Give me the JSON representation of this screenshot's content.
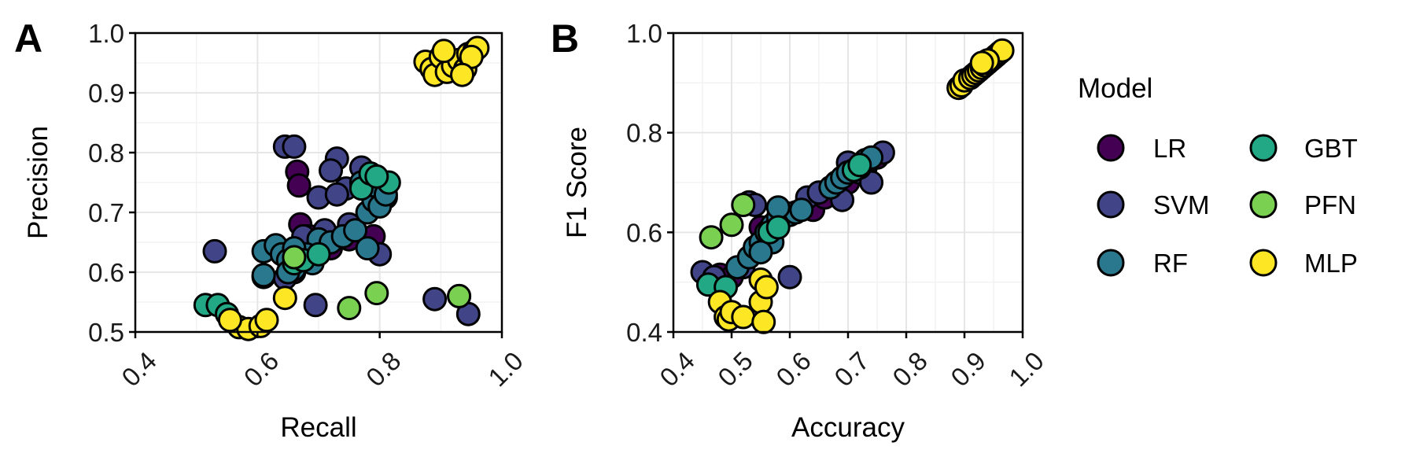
{
  "figure": {
    "panels": [
      "A",
      "B"
    ]
  },
  "legend": {
    "title": "Model",
    "items": [
      {
        "label": "LR",
        "color": "#440154"
      },
      {
        "label": "SVM",
        "color": "#414487"
      },
      {
        "label": "RF",
        "color": "#2A788E"
      },
      {
        "label": "GBT",
        "color": "#22A884"
      },
      {
        "label": "PFN",
        "color": "#7AD151"
      },
      {
        "label": "MLP",
        "color": "#FDE725"
      }
    ]
  },
  "chart_data": [
    {
      "panel": "A",
      "type": "scatter",
      "xlabel": "Recall",
      "ylabel": "Precision",
      "xlim": [
        0.4,
        1.0
      ],
      "ylim": [
        0.5,
        1.0
      ],
      "xticks": [
        "0.4",
        "0.6",
        "0.8",
        "1.0"
      ],
      "yticks": [
        "0.5",
        "0.6",
        "0.7",
        "0.8",
        "0.9",
        "1.0"
      ],
      "grid": true,
      "series": [
        {
          "name": "LR",
          "color": "#440154",
          "points": [
            [
              0.665,
              0.768
            ],
            [
              0.668,
              0.745
            ],
            [
              0.67,
              0.68
            ],
            [
              0.685,
              0.66
            ],
            [
              0.75,
              0.655
            ],
            [
              0.79,
              0.66
            ],
            [
              0.7,
              0.655
            ],
            [
              0.72,
              0.64
            ],
            [
              0.61,
              0.592
            ],
            [
              0.66,
              0.6
            ],
            [
              0.8,
              0.73
            ]
          ]
        },
        {
          "name": "SVM",
          "color": "#414487",
          "points": [
            [
              0.645,
              0.81
            ],
            [
              0.66,
              0.81
            ],
            [
              0.73,
              0.79
            ],
            [
              0.72,
              0.77
            ],
            [
              0.77,
              0.775
            ],
            [
              0.745,
              0.74
            ],
            [
              0.7,
              0.725
            ],
            [
              0.73,
              0.73
            ],
            [
              0.78,
              0.74
            ],
            [
              0.81,
              0.725
            ],
            [
              0.8,
              0.63
            ],
            [
              0.75,
              0.68
            ],
            [
              0.675,
              0.66
            ],
            [
              0.71,
              0.67
            ],
            [
              0.695,
              0.545
            ],
            [
              0.53,
              0.635
            ],
            [
              0.645,
              0.59
            ],
            [
              0.93,
              0.56
            ],
            [
              0.89,
              0.555
            ],
            [
              0.945,
              0.53
            ]
          ]
        },
        {
          "name": "RF",
          "color": "#2A788E",
          "points": [
            [
              0.61,
              0.635
            ],
            [
              0.63,
              0.645
            ],
            [
              0.64,
              0.63
            ],
            [
              0.65,
              0.62
            ],
            [
              0.66,
              0.605
            ],
            [
              0.67,
              0.62
            ],
            [
              0.69,
              0.615
            ],
            [
              0.7,
              0.655
            ],
            [
              0.72,
              0.65
            ],
            [
              0.74,
              0.66
            ],
            [
              0.76,
              0.67
            ],
            [
              0.78,
              0.7
            ],
            [
              0.79,
              0.72
            ],
            [
              0.8,
              0.71
            ],
            [
              0.77,
              0.75
            ],
            [
              0.79,
              0.745
            ],
            [
              0.81,
              0.73
            ],
            [
              0.78,
              0.64
            ],
            [
              0.65,
              0.6
            ],
            [
              0.61,
              0.595
            ],
            [
              0.68,
              0.63
            ],
            [
              0.66,
              0.64
            ]
          ]
        },
        {
          "name": "GBT",
          "color": "#22A884",
          "points": [
            [
              0.515,
              0.545
            ],
            [
              0.535,
              0.545
            ],
            [
              0.55,
              0.53
            ],
            [
              0.66,
              0.615
            ],
            [
              0.675,
              0.62
            ],
            [
              0.7,
              0.63
            ],
            [
              0.77,
              0.74
            ],
            [
              0.785,
              0.765
            ],
            [
              0.815,
              0.75
            ],
            [
              0.795,
              0.76
            ]
          ]
        },
        {
          "name": "PFN",
          "color": "#7AD151",
          "points": [
            [
              0.75,
              0.54
            ],
            [
              0.795,
              0.565
            ],
            [
              0.93,
              0.56
            ],
            [
              0.66,
              0.625
            ]
          ]
        },
        {
          "name": "MLP",
          "color": "#FDE725",
          "points": [
            [
              0.57,
              0.508
            ],
            [
              0.585,
              0.505
            ],
            [
              0.605,
              0.51
            ],
            [
              0.615,
              0.52
            ],
            [
              0.645,
              0.557
            ],
            [
              0.555,
              0.52
            ],
            [
              0.875,
              0.952
            ],
            [
              0.885,
              0.94
            ],
            [
              0.89,
              0.93
            ],
            [
              0.9,
              0.96
            ],
            [
              0.91,
              0.935
            ],
            [
              0.92,
              0.945
            ],
            [
              0.93,
              0.955
            ],
            [
              0.94,
              0.94
            ],
            [
              0.945,
              0.965
            ],
            [
              0.955,
              0.97
            ],
            [
              0.96,
              0.975
            ],
            [
              0.95,
              0.96
            ],
            [
              0.905,
              0.97
            ],
            [
              0.935,
              0.93
            ]
          ]
        }
      ]
    },
    {
      "panel": "B",
      "type": "scatter",
      "xlabel": "Accuracy",
      "ylabel": "F1 Score",
      "xlim": [
        0.4,
        1.0
      ],
      "ylim": [
        0.4,
        1.0
      ],
      "xticks": [
        "0.4",
        "0.5",
        "0.6",
        "0.7",
        "0.8",
        "0.9",
        "1.0"
      ],
      "yticks": [
        "0.4",
        "0.6",
        "0.8",
        "1.0"
      ],
      "grid": true,
      "series": [
        {
          "name": "LR",
          "color": "#440154",
          "points": [
            [
              0.48,
              0.515
            ],
            [
              0.5,
              0.51
            ],
            [
              0.55,
              0.61
            ],
            [
              0.58,
              0.63
            ],
            [
              0.62,
              0.645
            ],
            [
              0.64,
              0.645
            ],
            [
              0.66,
              0.67
            ],
            [
              0.7,
              0.7
            ],
            [
              0.73,
              0.73
            ],
            [
              0.75,
              0.75
            ]
          ]
        },
        {
          "name": "SVM",
          "color": "#414487",
          "points": [
            [
              0.45,
              0.52
            ],
            [
              0.47,
              0.51
            ],
            [
              0.52,
              0.53
            ],
            [
              0.53,
              0.66
            ],
            [
              0.54,
              0.655
            ],
            [
              0.56,
              0.6
            ],
            [
              0.6,
              0.51
            ],
            [
              0.63,
              0.67
            ],
            [
              0.65,
              0.68
            ],
            [
              0.68,
              0.7
            ],
            [
              0.69,
              0.665
            ],
            [
              0.72,
              0.72
            ],
            [
              0.74,
              0.7
            ],
            [
              0.76,
              0.76
            ],
            [
              0.7,
              0.74
            ],
            [
              0.735,
              0.745
            ]
          ]
        },
        {
          "name": "RF",
          "color": "#2A788E",
          "points": [
            [
              0.51,
              0.53
            ],
            [
              0.53,
              0.55
            ],
            [
              0.54,
              0.57
            ],
            [
              0.55,
              0.58
            ],
            [
              0.56,
              0.6
            ],
            [
              0.57,
              0.615
            ],
            [
              0.58,
              0.63
            ],
            [
              0.59,
              0.64
            ],
            [
              0.6,
              0.635
            ],
            [
              0.61,
              0.64
            ],
            [
              0.62,
              0.645
            ],
            [
              0.67,
              0.69
            ],
            [
              0.68,
              0.7
            ],
            [
              0.69,
              0.71
            ],
            [
              0.7,
              0.72
            ],
            [
              0.71,
              0.725
            ],
            [
              0.72,
              0.73
            ],
            [
              0.73,
              0.745
            ],
            [
              0.74,
              0.75
            ],
            [
              0.58,
              0.65
            ],
            [
              0.57,
              0.58
            ],
            [
              0.55,
              0.56
            ]
          ]
        },
        {
          "name": "GBT",
          "color": "#22A884",
          "points": [
            [
              0.46,
              0.495
            ],
            [
              0.49,
              0.49
            ],
            [
              0.565,
              0.6
            ],
            [
              0.58,
              0.61
            ],
            [
              0.71,
              0.725
            ],
            [
              0.72,
              0.735
            ]
          ]
        },
        {
          "name": "PFN",
          "color": "#7AD151",
          "points": [
            [
              0.465,
              0.59
            ],
            [
              0.5,
              0.615
            ],
            [
              0.52,
              0.655
            ]
          ]
        },
        {
          "name": "MLP",
          "color": "#FDE725",
          "points": [
            [
              0.48,
              0.46
            ],
            [
              0.49,
              0.43
            ],
            [
              0.495,
              0.425
            ],
            [
              0.5,
              0.44
            ],
            [
              0.52,
              0.43
            ],
            [
              0.55,
              0.505
            ],
            [
              0.55,
              0.46
            ],
            [
              0.555,
              0.42
            ],
            [
              0.56,
              0.49
            ],
            [
              0.89,
              0.89
            ],
            [
              0.895,
              0.895
            ],
            [
              0.9,
              0.905
            ],
            [
              0.91,
              0.91
            ],
            [
              0.915,
              0.915
            ],
            [
              0.92,
              0.92
            ],
            [
              0.925,
              0.925
            ],
            [
              0.93,
              0.93
            ],
            [
              0.935,
              0.935
            ],
            [
              0.94,
              0.94
            ],
            [
              0.945,
              0.945
            ],
            [
              0.95,
              0.95
            ],
            [
              0.955,
              0.955
            ],
            [
              0.96,
              0.96
            ],
            [
              0.965,
              0.965
            ],
            [
              0.94,
              0.945
            ],
            [
              0.93,
              0.94
            ]
          ]
        }
      ]
    }
  ]
}
